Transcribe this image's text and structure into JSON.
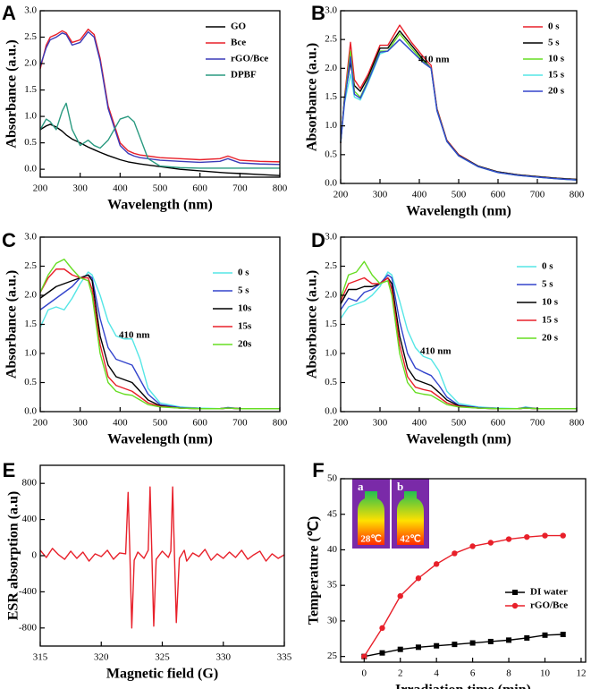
{
  "chart_data": [
    {
      "type": "line",
      "panel_label": "A",
      "x_label": "Wavelength (nm)",
      "y_label": "Absorbance (a.u.)",
      "legend": "upper right",
      "x": [
        200,
        215,
        225,
        240,
        255,
        265,
        280,
        300,
        320,
        335,
        350,
        370,
        400,
        420,
        435,
        450,
        470,
        500,
        550,
        600,
        650,
        670,
        700,
        750,
        800
      ],
      "xlim": [
        200,
        800
      ],
      "xticks": [
        200,
        300,
        400,
        500,
        600,
        700,
        800
      ],
      "ylim": [
        -0.15,
        3.0
      ],
      "yticks": [
        {
          "value": 0,
          "label": "0.0"
        },
        0.5,
        {
          "value": 1,
          "label": "1.0"
        },
        1.5,
        {
          "value": 2,
          "label": "2.0"
        },
        2.5,
        {
          "value": 3,
          "label": "3.0"
        }
      ],
      "series": [
        {
          "name": "GO",
          "color": "#000000",
          "values": [
            0.75,
            0.82,
            0.85,
            0.8,
            0.72,
            0.65,
            0.57,
            0.5,
            0.42,
            0.37,
            0.32,
            0.26,
            0.18,
            0.14,
            0.12,
            0.1,
            0.08,
            0.05,
            0.0,
            -0.03,
            -0.06,
            -0.07,
            -0.08,
            -0.1,
            -0.12
          ]
        },
        {
          "name": "Bce",
          "color": "#e8202a",
          "values": [
            1.9,
            2.35,
            2.5,
            2.55,
            2.62,
            2.58,
            2.4,
            2.45,
            2.65,
            2.55,
            2.1,
            1.2,
            0.5,
            0.35,
            0.3,
            0.27,
            0.25,
            0.22,
            0.2,
            0.18,
            0.2,
            0.25,
            0.17,
            0.15,
            0.14
          ]
        },
        {
          "name": "rGO/Bce",
          "color": "#3a3ab8",
          "values": [
            1.95,
            2.3,
            2.45,
            2.5,
            2.58,
            2.55,
            2.35,
            2.4,
            2.6,
            2.5,
            2.05,
            1.15,
            0.45,
            0.3,
            0.25,
            0.22,
            0.2,
            0.17,
            0.15,
            0.13,
            0.15,
            0.2,
            0.12,
            0.1,
            0.09
          ]
        },
        {
          "name": "DPBF",
          "color": "#2a9a80",
          "values": [
            0.75,
            0.95,
            0.9,
            0.75,
            1.1,
            1.25,
            0.75,
            0.45,
            0.55,
            0.45,
            0.4,
            0.55,
            0.95,
            1.0,
            0.9,
            0.6,
            0.2,
            0.06,
            0.03,
            0.02,
            0.02,
            0.02,
            0.02,
            0.02,
            0.02
          ]
        }
      ]
    },
    {
      "type": "line",
      "panel_label": "B",
      "x_label": "Wavelength (nm)",
      "y_label": "Absorbance (a.u.)",
      "legend": "upper right",
      "annotation": "410 nm",
      "x": [
        200,
        210,
        225,
        235,
        250,
        270,
        300,
        320,
        350,
        380,
        410,
        430,
        445,
        470,
        500,
        550,
        600,
        650,
        700,
        750,
        800
      ],
      "xlim": [
        200,
        800
      ],
      "xticks": [
        200,
        300,
        400,
        500,
        600,
        700,
        800
      ],
      "ylim": [
        0,
        3.0
      ],
      "yticks": [
        {
          "value": 0,
          "label": "0.0"
        },
        0.5,
        {
          "value": 1,
          "label": "1.0"
        },
        1.5,
        {
          "value": 2,
          "label": "2.0"
        },
        2.5,
        {
          "value": 3,
          "label": "3.0"
        }
      ],
      "series": [
        {
          "name": "0 s",
          "color": "#e8202a",
          "values": [
            0.7,
            1.5,
            2.45,
            1.8,
            1.65,
            1.9,
            2.4,
            2.4,
            2.75,
            2.45,
            2.2,
            2.05,
            1.3,
            0.75,
            0.5,
            0.3,
            0.2,
            0.15,
            0.12,
            0.09,
            0.07
          ]
        },
        {
          "name": "5 s",
          "color": "#000000",
          "values": [
            0.7,
            1.5,
            2.1,
            1.7,
            1.6,
            1.85,
            2.35,
            2.35,
            2.65,
            2.4,
            2.15,
            2.0,
            1.28,
            0.74,
            0.49,
            0.3,
            0.2,
            0.15,
            0.12,
            0.09,
            0.07
          ]
        },
        {
          "name": "10 s",
          "color": "#66dd22",
          "values": [
            0.72,
            1.45,
            2.3,
            1.6,
            1.5,
            1.8,
            2.3,
            2.3,
            2.6,
            2.35,
            2.12,
            2.0,
            1.27,
            0.73,
            0.48,
            0.29,
            0.19,
            0.14,
            0.11,
            0.08,
            0.06
          ]
        },
        {
          "name": "15 s",
          "color": "#55e6e6",
          "values": [
            0.72,
            1.4,
            1.9,
            1.5,
            1.45,
            1.75,
            2.25,
            2.3,
            2.5,
            2.3,
            2.1,
            2.0,
            1.26,
            0.73,
            0.48,
            0.29,
            0.19,
            0.14,
            0.11,
            0.08,
            0.06
          ]
        },
        {
          "name": "20 s",
          "color": "#3344cc",
          "values": [
            0.72,
            1.42,
            2.2,
            1.55,
            1.48,
            1.78,
            2.28,
            2.3,
            2.5,
            2.3,
            2.1,
            2.0,
            1.26,
            0.73,
            0.48,
            0.29,
            0.19,
            0.14,
            0.11,
            0.08,
            0.06
          ]
        }
      ]
    },
    {
      "type": "line",
      "panel_label": "C",
      "x_label": "Wavelength (nm)",
      "y_label": "Absorbance (a.u.)",
      "legend": "center right",
      "annotation": "410 nm",
      "x": [
        200,
        220,
        240,
        260,
        280,
        300,
        320,
        330,
        350,
        370,
        390,
        410,
        430,
        450,
        470,
        500,
        550,
        600,
        650,
        670,
        700,
        750,
        800
      ],
      "xlim": [
        200,
        800
      ],
      "xticks": [
        200,
        300,
        400,
        500,
        600,
        700,
        800
      ],
      "ylim": [
        0,
        3.0
      ],
      "yticks": [
        {
          "value": 0,
          "label": "0.0"
        },
        0.5,
        {
          "value": 1,
          "label": "1.0"
        },
        1.5,
        {
          "value": 2,
          "label": "2.0"
        },
        2.5,
        {
          "value": 3,
          "label": "3.0"
        }
      ],
      "series": [
        {
          "name": "0 s",
          "color": "#55e6e6",
          "values": [
            1.45,
            1.75,
            1.8,
            1.75,
            1.95,
            2.2,
            2.4,
            2.35,
            2.0,
            1.55,
            1.3,
            1.25,
            1.25,
            0.9,
            0.4,
            0.15,
            0.08,
            0.06,
            0.05,
            0.07,
            0.05,
            0.05,
            0.05
          ]
        },
        {
          "name": "5 s",
          "color": "#3344cc",
          "values": [
            1.75,
            1.85,
            1.95,
            2.05,
            2.15,
            2.3,
            2.35,
            2.3,
            1.6,
            1.1,
            0.9,
            0.85,
            0.8,
            0.55,
            0.3,
            0.12,
            0.07,
            0.05,
            0.05,
            0.07,
            0.05,
            0.05,
            0.05
          ]
        },
        {
          "name": "10s",
          "color": "#000000",
          "values": [
            1.95,
            2.05,
            2.15,
            2.2,
            2.25,
            2.3,
            2.35,
            2.25,
            1.3,
            0.8,
            0.6,
            0.55,
            0.5,
            0.35,
            0.2,
            0.1,
            0.06,
            0.05,
            0.05,
            0.06,
            0.05,
            0.05,
            0.05
          ]
        },
        {
          "name": "15s",
          "color": "#e8202a",
          "values": [
            2.05,
            2.3,
            2.45,
            2.45,
            2.35,
            2.3,
            2.3,
            2.1,
            1.15,
            0.6,
            0.45,
            0.4,
            0.35,
            0.25,
            0.15,
            0.09,
            0.06,
            0.05,
            0.05,
            0.06,
            0.05,
            0.05,
            0.05
          ]
        },
        {
          "name": "20s",
          "color": "#66dd22",
          "values": [
            2.05,
            2.35,
            2.55,
            2.62,
            2.45,
            2.3,
            2.25,
            2.0,
            1.0,
            0.5,
            0.35,
            0.3,
            0.28,
            0.2,
            0.12,
            0.08,
            0.06,
            0.05,
            0.05,
            0.06,
            0.05,
            0.05,
            0.05
          ]
        }
      ]
    },
    {
      "type": "line",
      "panel_label": "D",
      "x_label": "Wavelength (nm)",
      "y_label": "Absorbance (a.u.)",
      "legend": "center right",
      "annotation": "410 nm",
      "x": [
        200,
        220,
        240,
        260,
        280,
        300,
        320,
        330,
        350,
        370,
        390,
        410,
        430,
        450,
        470,
        500,
        550,
        600,
        650,
        670,
        700,
        750,
        800
      ],
      "xlim": [
        200,
        800
      ],
      "xticks": [
        200,
        300,
        400,
        500,
        600,
        700,
        800
      ],
      "ylim": [
        0,
        3.0
      ],
      "yticks": [
        {
          "value": 0,
          "label": "0.0"
        },
        0.5,
        {
          "value": 1,
          "label": "1.0"
        },
        1.5,
        {
          "value": 2,
          "label": "2.0"
        },
        2.5,
        {
          "value": 3,
          "label": "3.0"
        }
      ],
      "series": [
        {
          "name": "0 s",
          "color": "#55e6e6",
          "values": [
            1.6,
            1.8,
            1.85,
            1.9,
            2.0,
            2.15,
            2.4,
            2.35,
            1.9,
            1.4,
            1.1,
            0.95,
            0.9,
            0.7,
            0.35,
            0.14,
            0.08,
            0.06,
            0.05,
            0.08,
            0.05,
            0.05,
            0.05
          ]
        },
        {
          "name": "5 s",
          "color": "#3344cc",
          "values": [
            1.75,
            1.95,
            1.9,
            2.05,
            2.1,
            2.2,
            2.35,
            2.3,
            1.55,
            1.0,
            0.75,
            0.68,
            0.62,
            0.45,
            0.25,
            0.11,
            0.07,
            0.05,
            0.05,
            0.07,
            0.05,
            0.05,
            0.05
          ]
        },
        {
          "name": "10 s",
          "color": "#000000",
          "values": [
            1.85,
            2.1,
            2.1,
            2.15,
            2.15,
            2.2,
            2.3,
            2.2,
            1.3,
            0.75,
            0.55,
            0.5,
            0.45,
            0.33,
            0.2,
            0.1,
            0.06,
            0.05,
            0.05,
            0.06,
            0.05,
            0.05,
            0.05
          ]
        },
        {
          "name": "15 s",
          "color": "#e8202a",
          "values": [
            1.9,
            2.2,
            2.25,
            2.3,
            2.2,
            2.2,
            2.3,
            2.1,
            1.15,
            0.6,
            0.42,
            0.38,
            0.35,
            0.25,
            0.15,
            0.09,
            0.06,
            0.05,
            0.05,
            0.06,
            0.05,
            0.05,
            0.05
          ]
        },
        {
          "name": "20 s",
          "color": "#66dd22",
          "values": [
            1.95,
            2.35,
            2.4,
            2.58,
            2.35,
            2.2,
            2.25,
            2.0,
            1.0,
            0.5,
            0.33,
            0.3,
            0.28,
            0.2,
            0.12,
            0.08,
            0.06,
            0.05,
            0.05,
            0.06,
            0.05,
            0.05,
            0.05
          ]
        }
      ]
    },
    {
      "type": "line",
      "panel_label": "E",
      "x_label": "Magnetic field (G)",
      "y_label": "ESR absorption (a.u)",
      "x": [
        315,
        315.5,
        316,
        316.5,
        317,
        317.5,
        318,
        318.5,
        319,
        319.5,
        320,
        320.5,
        321,
        321.5,
        322,
        322.2,
        322.35,
        322.5,
        322.7,
        323,
        323.5,
        323.85,
        324.0,
        324.15,
        324.3,
        324.5,
        325,
        325.5,
        325.7,
        325.85,
        326.0,
        326.15,
        326.4,
        326.8,
        327,
        327.5,
        328,
        328.5,
        329,
        329.5,
        330,
        330.5,
        331,
        331.5,
        332,
        332.5,
        333,
        333.5,
        334,
        334.5,
        335
      ],
      "xlim": [
        315,
        335
      ],
      "xticks": [
        315,
        320,
        325,
        330,
        335
      ],
      "ylim": [
        -1000,
        1000
      ],
      "yticks": [
        800,
        400,
        0,
        -400,
        -800
      ],
      "series": [
        {
          "name": null,
          "color": "#e8202a",
          "values": [
            60,
            -20,
            80,
            10,
            -40,
            50,
            -30,
            40,
            -60,
            20,
            -10,
            60,
            -40,
            30,
            20,
            700,
            0,
            -800,
            -50,
            40,
            -30,
            60,
            760,
            0,
            -780,
            -40,
            50,
            -20,
            50,
            760,
            0,
            -740,
            -30,
            60,
            -60,
            30,
            -10,
            70,
            -50,
            20,
            -30,
            40,
            -20,
            60,
            -40,
            10,
            50,
            -60,
            20,
            -30,
            10
          ]
        }
      ]
    },
    {
      "type": "line",
      "panel_label": "F",
      "x_label": "Irradiation time (min)",
      "y_label": "Temperature (℃)",
      "legend": "lower right",
      "inset_labels": [
        "a",
        "b"
      ],
      "inset_temps": [
        "28℃",
        "42℃"
      ],
      "x": [
        0,
        1,
        2,
        3,
        4,
        5,
        6,
        7,
        8,
        9,
        10,
        11
      ],
      "xlim": [
        -1.3,
        12.25
      ],
      "xticks": [
        0,
        2,
        4,
        6,
        8,
        10,
        12
      ],
      "ylim": [
        24.2,
        50
      ],
      "yticks": [
        25,
        30,
        35,
        40,
        45,
        50
      ],
      "series": [
        {
          "name": "DI water",
          "color": "#000000",
          "marker": "square",
          "values": [
            25,
            25.5,
            26,
            26.3,
            26.5,
            26.7,
            26.9,
            27.1,
            27.3,
            27.6,
            28,
            28.1
          ]
        },
        {
          "name": "rGO/Bce",
          "color": "#e8202a",
          "marker": "circle",
          "values": [
            25,
            29,
            33.5,
            36,
            38,
            39.5,
            40.5,
            41,
            41.5,
            41.8,
            42,
            42
          ]
        }
      ]
    }
  ]
}
